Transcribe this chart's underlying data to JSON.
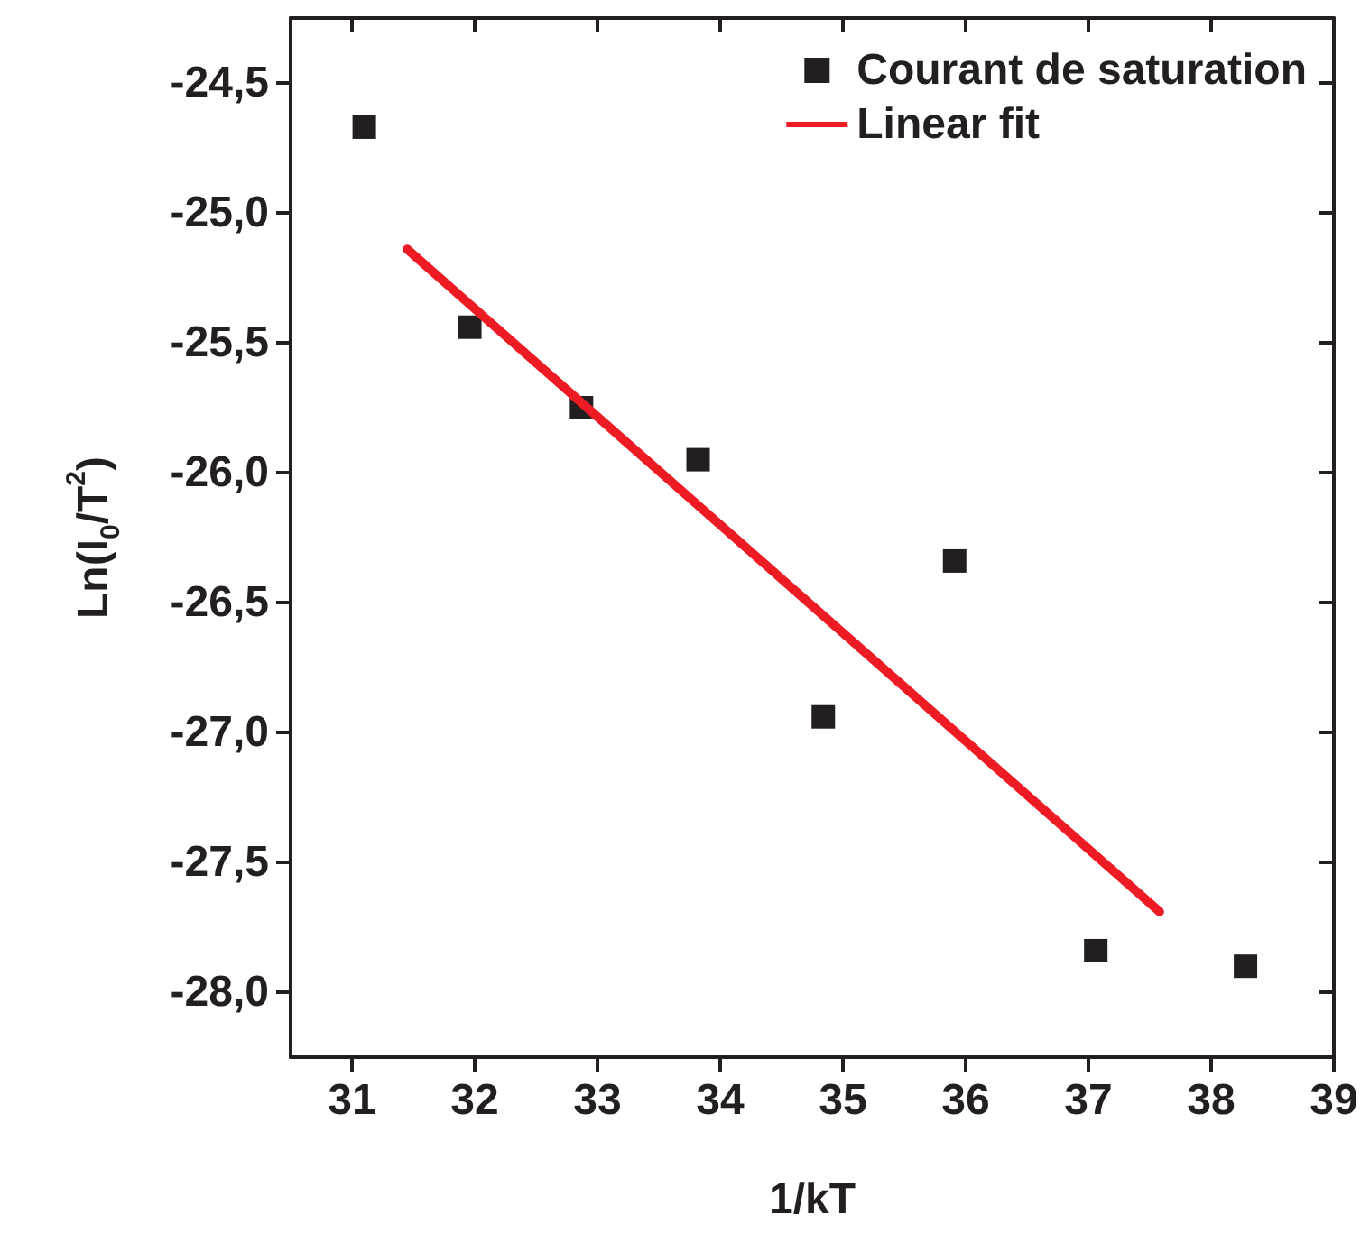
{
  "chart_data": {
    "type": "scatter",
    "xlabel": "1/kT",
    "ylabel": "Ln(I$_{0}$/T$^{2}$)",
    "series": [
      {
        "name": "Courant de saturation",
        "color": "#231f20",
        "marker": "square",
        "x": [
          31.1,
          31.96,
          32.87,
          33.82,
          34.84,
          35.91,
          37.06,
          38.28
        ],
        "values": [
          -24.67,
          -25.44,
          -25.75,
          -25.95,
          -26.94,
          -26.34,
          -27.84,
          -27.9
        ]
      },
      {
        "name": "Linear fit",
        "type": "line",
        "color": "#ed1c24",
        "marker": "none",
        "line_style": "solid",
        "x": [
          31.45,
          37.58
        ],
        "values": [
          -25.14,
          -27.69
        ]
      }
    ],
    "xlim": [
      30.5,
      39
    ],
    "xticks": [
      31,
      32,
      33,
      34,
      35,
      36,
      37,
      38,
      39
    ],
    "ylim": [
      -28.25,
      -24.25
    ],
    "yticks": [
      {
        "value": -28.0,
        "label": "-28,0"
      },
      {
        "value": -27.5,
        "label": "-27,5"
      },
      {
        "value": -27.0,
        "label": "-27,0"
      },
      {
        "value": -26.5,
        "label": "-26,5"
      },
      {
        "value": -26.0,
        "label": "-26,0"
      },
      {
        "value": -25.5,
        "label": "-25,5"
      },
      {
        "value": -25.0,
        "label": "-25,0"
      },
      {
        "value": -24.5,
        "label": "-24,5"
      }
    ],
    "grid": false,
    "legend": "top right"
  }
}
